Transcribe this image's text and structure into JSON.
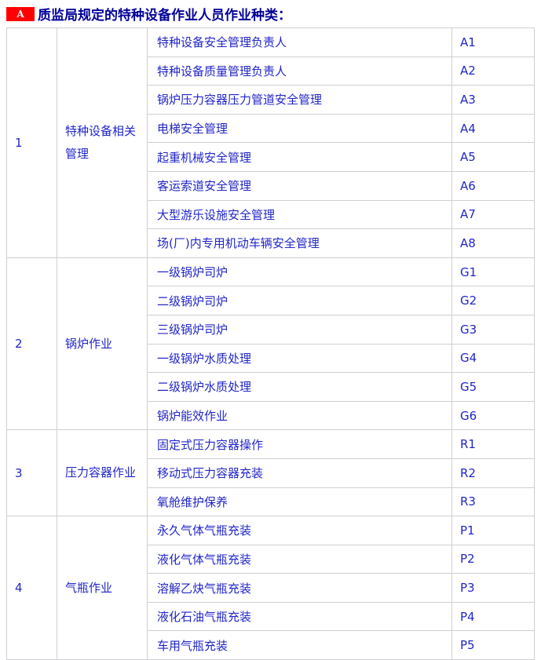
{
  "title": {
    "badge": "A",
    "text": "质监局规定的特种设备作业人员作业种类："
  },
  "colors": {
    "background": "#ffffff",
    "badge_bg": "#ff0000",
    "badge_text": "#ffffff",
    "title_text": "#000099",
    "cell_text": "#2126c8",
    "border": "#d0d0d4"
  },
  "table": {
    "groups": [
      {
        "no": "1",
        "category": "特种设备相关管理",
        "items": [
          {
            "name": "特种设备安全管理负责人",
            "code": "A1"
          },
          {
            "name": "特种设备质量管理负责人",
            "code": "A2"
          },
          {
            "name": "锅炉压力容器压力管道安全管理",
            "code": "A3"
          },
          {
            "name": "电梯安全管理",
            "code": "A4"
          },
          {
            "name": "起重机械安全管理",
            "code": "A5"
          },
          {
            "name": "客运索道安全管理",
            "code": "A6"
          },
          {
            "name": "大型游乐设施安全管理",
            "code": "A7"
          },
          {
            "name": "场(厂)内专用机动车辆安全管理",
            "code": "A8"
          }
        ]
      },
      {
        "no": "2",
        "category": "锅炉作业",
        "items": [
          {
            "name": "一级锅炉司炉",
            "code": "G1"
          },
          {
            "name": "二级锅炉司炉",
            "code": "G2"
          },
          {
            "name": "三级锅炉司炉",
            "code": "G3"
          },
          {
            "name": "一级锅炉水质处理",
            "code": "G4"
          },
          {
            "name": "二级锅炉水质处理",
            "code": "G5"
          },
          {
            "name": "锅炉能效作业",
            "code": "G6"
          }
        ]
      },
      {
        "no": "3",
        "category": "压力容器作业",
        "items": [
          {
            "name": "固定式压力容器操作",
            "code": "R1"
          },
          {
            "name": "移动式压力容器充装",
            "code": "R2"
          },
          {
            "name": "氧舱维护保养",
            "code": "R3"
          }
        ]
      },
      {
        "no": "4",
        "category": "气瓶作业",
        "items": [
          {
            "name": "永久气体气瓶充装",
            "code": "P1"
          },
          {
            "name": "液化气体气瓶充装",
            "code": "P2"
          },
          {
            "name": "溶解乙炔气瓶充装",
            "code": "P3"
          },
          {
            "name": "液化石油气瓶充装",
            "code": "P4"
          },
          {
            "name": "车用气瓶充装",
            "code": "P5"
          }
        ]
      }
    ]
  }
}
